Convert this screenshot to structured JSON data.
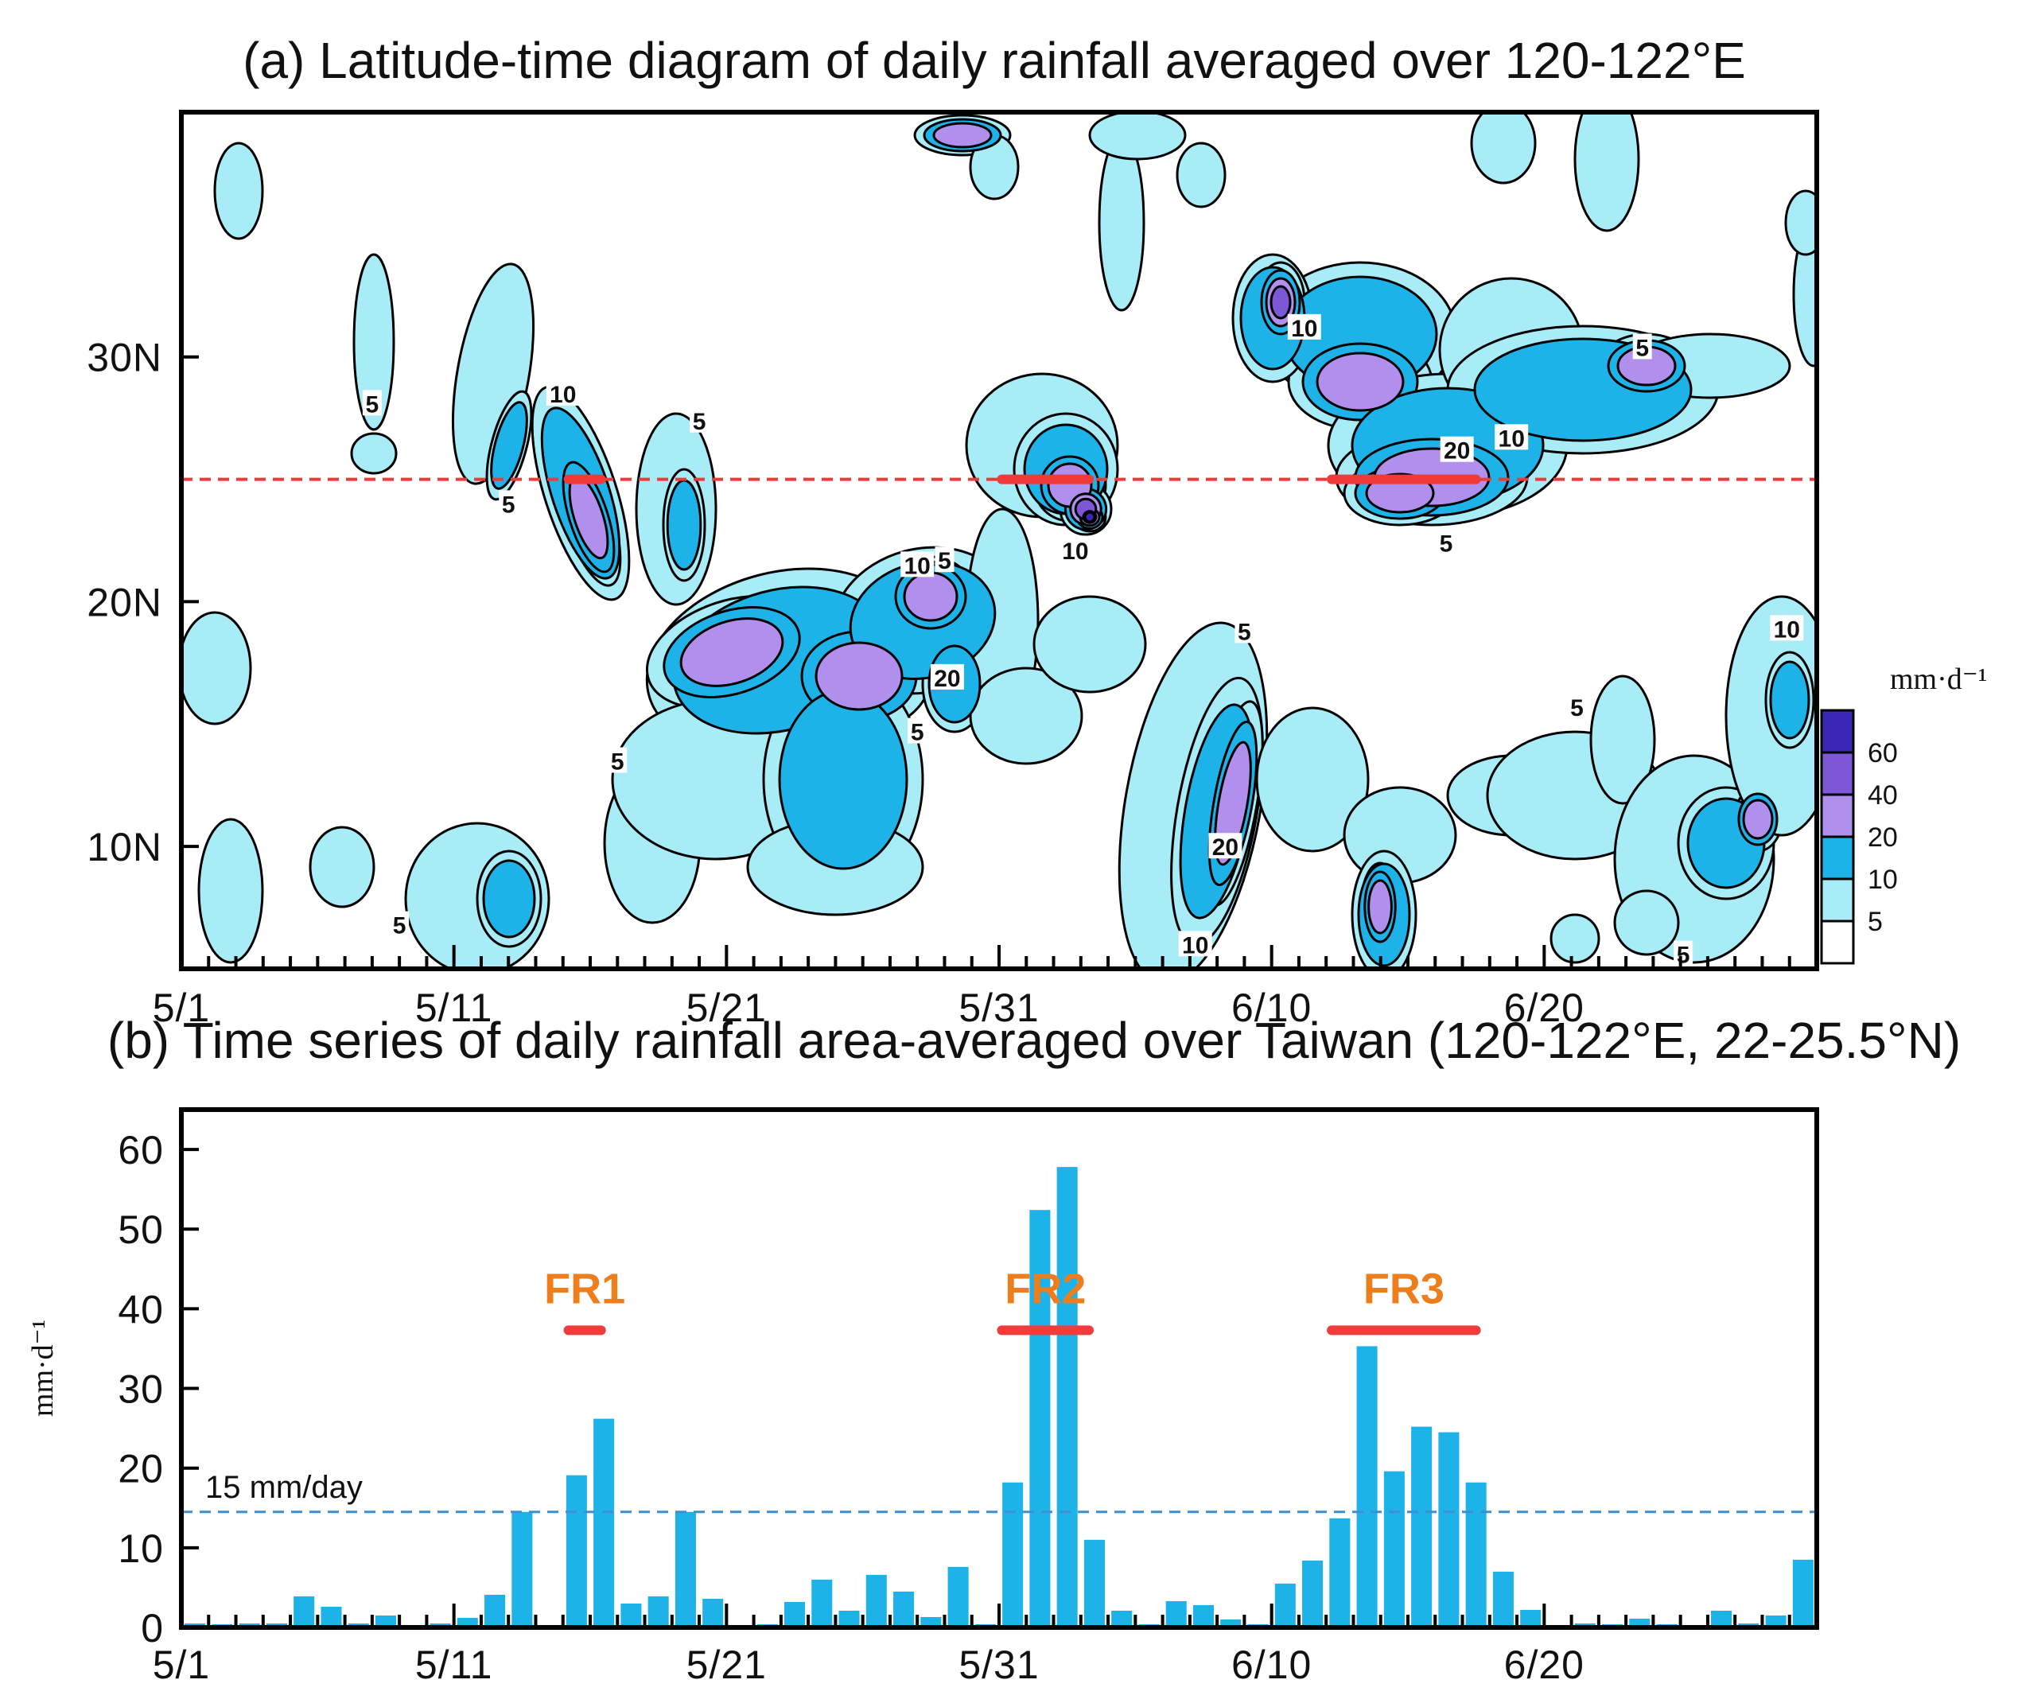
{
  "panel_a": {
    "title": "(a) Latitude-time diagram of daily rainfall averaged over 120-122°E",
    "colorbar_unit": "mm·d⁻¹",
    "chart_data": {
      "type": "contour",
      "x_ticks": [
        "5/1",
        "5/11",
        "5/21",
        "5/31",
        "6/10",
        "6/20"
      ],
      "x_tick_days": [
        0,
        10,
        20,
        30,
        40,
        50
      ],
      "y_ticks": [
        "10N",
        "20N",
        "30N"
      ],
      "y_tick_lat": [
        10,
        20,
        30
      ],
      "xlim_days": [
        0,
        60
      ],
      "ylim_lat": [
        5,
        40
      ],
      "colorbar_levels": [
        "60",
        "40",
        "20",
        "10",
        "5"
      ],
      "colors": [
        "#3b27b5",
        "#7e57d6",
        "#b090ec",
        "#1eb3e8",
        "#a8ecf8",
        "#ffffff"
      ],
      "reference_lat": 25,
      "reference_color": "#f03a3a",
      "contour_labels": [
        {
          "text": "5",
          "day": 7,
          "lat": 28
        },
        {
          "text": "10",
          "day": 14,
          "lat": 28.4
        },
        {
          "text": "5",
          "day": 12,
          "lat": 23.9
        },
        {
          "text": "5",
          "day": 19,
          "lat": 27.3
        },
        {
          "text": "10",
          "day": 27,
          "lat": 21.4
        },
        {
          "text": "5",
          "day": 28,
          "lat": 21.6
        },
        {
          "text": "20",
          "day": 28.1,
          "lat": 16.8
        },
        {
          "text": "5",
          "day": 27,
          "lat": 14.6
        },
        {
          "text": "5",
          "day": 16,
          "lat": 13.4
        },
        {
          "text": "10",
          "day": 32.8,
          "lat": 22
        },
        {
          "text": "10",
          "day": 41.2,
          "lat": 31.1
        },
        {
          "text": "20",
          "day": 46.8,
          "lat": 26.1
        },
        {
          "text": "10",
          "day": 48.8,
          "lat": 26.6
        },
        {
          "text": "5",
          "day": 46.4,
          "lat": 22.3
        },
        {
          "text": "5",
          "day": 53.6,
          "lat": 30.3
        },
        {
          "text": "5",
          "day": 39,
          "lat": 18.7
        },
        {
          "text": "20",
          "day": 38.3,
          "lat": 9.9
        },
        {
          "text": "10",
          "day": 37.2,
          "lat": 5.9
        },
        {
          "text": "5",
          "day": 51.2,
          "lat": 15.6
        },
        {
          "text": "10",
          "day": 58.9,
          "lat": 18.8
        },
        {
          "text": "5",
          "day": 8,
          "lat": 6.7
        },
        {
          "text": "5",
          "day": 55.1,
          "lat": 5.5
        }
      ]
    }
  },
  "panel_b": {
    "title": "(b) Time series of daily rainfall area-averaged over Taiwan (120-122°E, 22-25.5°N)",
    "ylabel": "mm·d⁻¹",
    "chart_data": {
      "type": "bar",
      "x_ticks": [
        "5/1",
        "5/11",
        "5/21",
        "5/31",
        "6/10",
        "6/20"
      ],
      "x_tick_days": [
        0,
        10,
        20,
        30,
        40,
        50
      ],
      "y_ticks": [
        "0",
        "10",
        "20",
        "30",
        "40",
        "50",
        "60"
      ],
      "ylim": [
        0,
        65
      ],
      "xlim_days": [
        0,
        60
      ],
      "days": [
        0,
        1,
        2,
        3,
        4,
        5,
        6,
        7,
        8,
        9,
        10,
        11,
        12,
        13,
        14,
        15,
        16,
        17,
        18,
        19,
        20,
        21,
        22,
        23,
        24,
        25,
        26,
        27,
        28,
        29,
        30,
        31,
        32,
        33,
        34,
        35,
        36,
        37,
        38,
        39,
        40,
        41,
        42,
        43,
        44,
        45,
        46,
        47,
        48,
        49,
        50,
        51,
        52,
        53,
        54,
        55,
        56,
        57,
        58,
        59
      ],
      "values": [
        0.5,
        0.4,
        0.5,
        0.5,
        3.9,
        2.6,
        0.5,
        1.5,
        0.3,
        0.5,
        1.2,
        4.1,
        14.5,
        0.3,
        19.1,
        26.2,
        3,
        3.9,
        14.5,
        3.6,
        0.3,
        0.4,
        3.2,
        6,
        2.1,
        6.6,
        4.5,
        1.3,
        7.6,
        0.4,
        18.2,
        52.4,
        57.8,
        11,
        2.1,
        0.4,
        3.3,
        2.8,
        1,
        0.4,
        5.5,
        8.4,
        13.7,
        35.3,
        19.6,
        25.2,
        24.5,
        18.2,
        7,
        2.2,
        0.3,
        0.5,
        0.4,
        1.1,
        0.4,
        0.3,
        2.1,
        0.5,
        1.5,
        8.5
      ],
      "bar_color": "#1eb3e8",
      "threshold": {
        "value": 14.5,
        "label": "15 mm/day",
        "color": "#3c8fd6"
      },
      "periods": [
        {
          "label": "FR1",
          "start": 14.2,
          "end": 15.4,
          "y": 37.3
        },
        {
          "label": "FR2",
          "start": 30.1,
          "end": 33.3,
          "y": 37.3
        },
        {
          "label": "FR3",
          "start": 42.2,
          "end": 47.5,
          "y": 37.3
        }
      ],
      "period_colors": {
        "bar": "#f23c3c",
        "label": "#ee7d1c"
      }
    }
  }
}
